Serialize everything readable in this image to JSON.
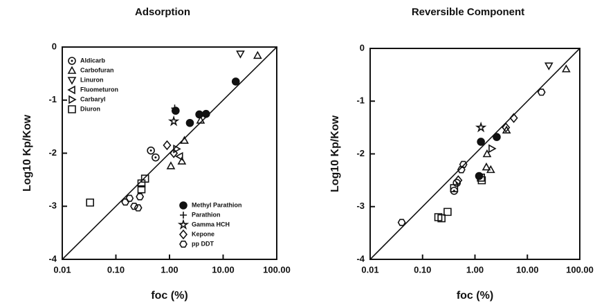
{
  "chart_data": [
    {
      "type": "scatter",
      "title": "Adsorption",
      "xlabel": "foc (%)",
      "ylabel": "Log10 Kp/Kow",
      "xscale": "log",
      "xlim": [
        0.01,
        100
      ],
      "ylim": [
        -4,
        0
      ],
      "xticks": [
        0.01,
        {
          "value": 0.1,
          "label": "0.10"
        },
        {
          "value": 1,
          "label": "1.00"
        },
        {
          "value": 10,
          "label": "10.00"
        },
        {
          "value": 100,
          "label": "100.00"
        }
      ],
      "yticks": [
        0,
        -1,
        -2,
        -3,
        -4
      ],
      "reference_line": {
        "x": [
          0.01,
          100
        ],
        "y": [
          -4,
          0
        ]
      },
      "series": [
        {
          "name": "Aldicarb",
          "marker": "circle-dot",
          "legend": "upper left",
          "x": [
            0.45,
            0.55
          ],
          "y": [
            -1.95,
            -2.08
          ]
        },
        {
          "name": "Carbofuran",
          "marker": "tri-up",
          "legend": "upper left",
          "x": [
            44,
            1.06,
            1.7,
            1.9,
            3.8
          ],
          "y": [
            -0.16,
            -2.24,
            -2.15,
            -1.76,
            -1.38
          ]
        },
        {
          "name": "Linuron",
          "marker": "tri-down",
          "legend": "upper left",
          "x": [
            21
          ],
          "y": [
            -0.13
          ]
        },
        {
          "name": "Fluometuron",
          "marker": "tri-left",
          "legend": "upper left",
          "x": [
            1.55
          ],
          "y": [
            -2.06
          ]
        },
        {
          "name": "Carbaryl",
          "marker": "tri-right",
          "legend": "upper left",
          "x": [
            1.35
          ],
          "y": [
            -1.92
          ]
        },
        {
          "name": "Diuron",
          "marker": "square",
          "legend": "upper left",
          "x": [
            0.033,
            0.35,
            0.3,
            0.3
          ],
          "y": [
            -2.93,
            -2.48,
            -2.57,
            -2.68
          ]
        },
        {
          "name": "Methyl Parathion",
          "marker": "filled-circle",
          "legend": "lower right",
          "x": [
            17.2,
            1.3,
            2.4,
            3.6,
            4.8
          ],
          "y": [
            -0.65,
            -1.2,
            -1.43,
            -1.27,
            -1.26
          ]
        },
        {
          "name": "Parathion",
          "marker": "plus",
          "legend": "lower right",
          "x": [
            1.25
          ],
          "y": [
            -1.15
          ]
        },
        {
          "name": "Gamma HCH",
          "marker": "star",
          "legend": "lower right",
          "x": [
            1.2
          ],
          "y": [
            -1.4
          ]
        },
        {
          "name": "Kepone",
          "marker": "diamond",
          "legend": "lower right",
          "x": [
            0.9,
            1.2
          ],
          "y": [
            -1.85,
            -2.0
          ]
        },
        {
          "name": "pp DDT",
          "marker": "hexagon",
          "legend": "lower right",
          "x": [
            0.15,
            0.18,
            0.22,
            0.26,
            0.28
          ],
          "y": [
            -2.92,
            -2.85,
            -3.0,
            -3.03,
            -2.82
          ]
        }
      ]
    },
    {
      "type": "scatter",
      "title": "Reversible Component",
      "xlabel": "foc (%)",
      "ylabel": "Log10 Kp/Kow",
      "xscale": "log",
      "xlim": [
        0.01,
        100
      ],
      "ylim": [
        -4,
        0
      ],
      "xticks": [
        0.01,
        {
          "value": 0.1,
          "label": "0.10"
        },
        {
          "value": 1,
          "label": "1.00"
        },
        {
          "value": 10,
          "label": "10.00"
        },
        {
          "value": 100,
          "label": "100.00"
        }
      ],
      "yticks": [
        0,
        -1,
        -2,
        -3,
        -4
      ],
      "reference_line": {
        "x": [
          0.01,
          100
        ],
        "y": [
          -4,
          0
        ]
      },
      "series": [
        {
          "marker": "circle-dot",
          "x": [
            0.45,
            0.4
          ],
          "y": [
            -2.55,
            -2.7
          ]
        },
        {
          "marker": "tri-up",
          "x": [
            1.7,
            1.65,
            2.0,
            4,
            55
          ],
          "y": [
            -2.0,
            -2.25,
            -2.3,
            -1.55,
            -0.39
          ]
        },
        {
          "marker": "tri-down",
          "x": [
            25.7
          ],
          "y": [
            -0.33
          ]
        },
        {
          "marker": "tri-right",
          "x": [
            2.1
          ],
          "y": [
            -1.9
          ]
        },
        {
          "marker": "square",
          "x": [
            0.2,
            0.23,
            0.3,
            0.4,
            1.3,
            1.35
          ],
          "y": [
            -3.2,
            -3.22,
            -3.1,
            -2.65,
            -2.45,
            -2.5
          ]
        },
        {
          "marker": "filled-circle",
          "x": [
            1.3,
            2.6,
            1.2
          ],
          "y": [
            -1.77,
            -1.68,
            -2.42
          ]
        },
        {
          "marker": "star",
          "x": [
            1.3
          ],
          "y": [
            -1.5
          ]
        },
        {
          "marker": "diamond",
          "x": [
            3.9,
            5.5,
            0.48
          ],
          "y": [
            -1.5,
            -1.32,
            -2.5
          ]
        },
        {
          "marker": "hexagon",
          "x": [
            0.04,
            0.55,
            0.6,
            18.6
          ],
          "y": [
            -3.3,
            -2.3,
            -2.2,
            -0.83
          ]
        }
      ]
    }
  ]
}
